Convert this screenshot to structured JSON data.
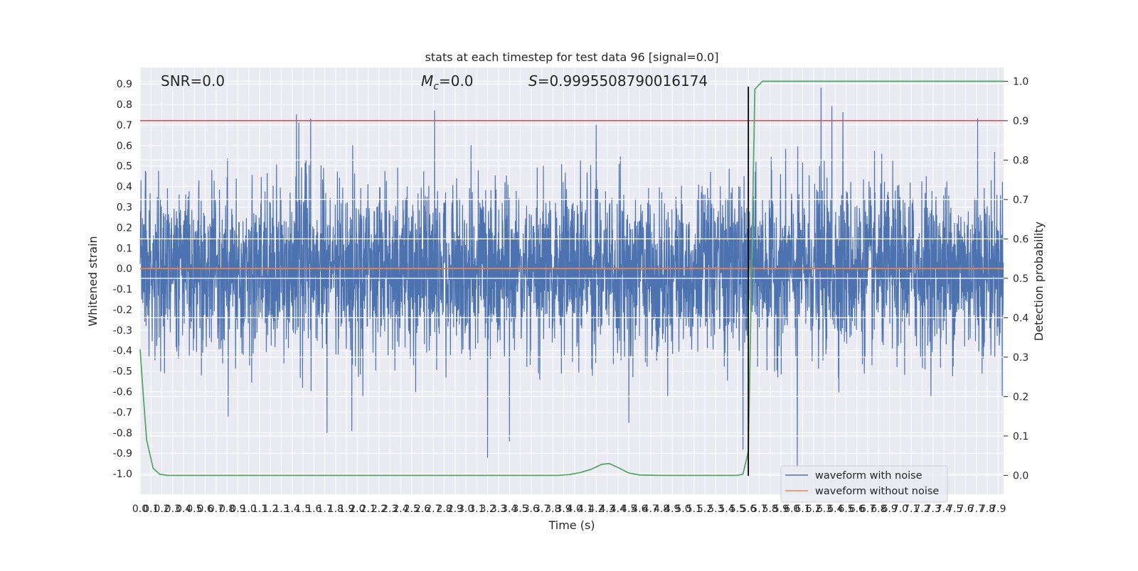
{
  "chart_data": {
    "type": "line",
    "title": "stats at each timestep for test data 96 [signal=0.0]",
    "xlabel": "Time (s)",
    "ylabel": "Whitened strain",
    "y2label": "Detection probability",
    "xlim": [
      0.0,
      7.95
    ],
    "ylim": [
      -1.1,
      0.98
    ],
    "y2lim": [
      -0.048,
      1.035
    ],
    "x_ticks": [
      "0.0",
      "0.1",
      "0.2",
      "0.3",
      "0.4",
      "0.5",
      "0.6",
      "0.7",
      "0.8",
      "0.9",
      "1.0",
      "1.1",
      "1.2",
      "1.3",
      "1.4",
      "1.5",
      "1.6",
      "1.7",
      "1.8",
      "1.9",
      "2.0",
      "2.1",
      "2.2",
      "2.3",
      "2.4",
      "2.5",
      "2.6",
      "2.7",
      "2.8",
      "2.9",
      "3.0",
      "3.1",
      "3.2",
      "3.3",
      "3.4",
      "3.5",
      "3.6",
      "3.7",
      "3.8",
      "3.9",
      "4.0",
      "4.1",
      "4.2",
      "4.3",
      "4.4",
      "4.5",
      "4.6",
      "4.7",
      "4.8",
      "4.9",
      "5.0",
      "5.1",
      "5.2",
      "5.3",
      "5.4",
      "5.5",
      "5.6",
      "5.7",
      "5.8",
      "5.9",
      "6.0",
      "6.1",
      "6.2",
      "6.3",
      "6.4",
      "6.5",
      "6.6",
      "6.7",
      "6.8",
      "6.9",
      "7.0",
      "7.1",
      "7.2",
      "7.3",
      "7.4",
      "7.5",
      "7.6",
      "7.7",
      "7.8",
      "7.9"
    ],
    "y_ticks": [
      "0.9",
      "0.8",
      "0.7",
      "0.6",
      "0.5",
      "0.4",
      "0.3",
      "0.2",
      "0.1",
      "0.0",
      "-0.1",
      "-0.2",
      "-0.3",
      "-0.4",
      "-0.5",
      "-0.6",
      "-0.7",
      "-0.8",
      "-0.9",
      "-1.0"
    ],
    "y2_ticks": [
      "1.0",
      "0.9",
      "0.8",
      "0.7",
      "0.6",
      "0.5",
      "0.4",
      "0.3",
      "0.2",
      "0.1",
      "0.0"
    ],
    "annotations": {
      "snr": "SNR=0.0",
      "mc_symbol": "M",
      "mc_sub": "c",
      "mc_value": "=0.0",
      "s_symbol": "S",
      "s_value": "=0.9995508790016174"
    },
    "threshold_line": {
      "y2": 0.9,
      "color": "#c44e52"
    },
    "vertical_marker": {
      "x": 5.6,
      "color": "#000000"
    },
    "legend": {
      "placement": "lower-right",
      "entries": [
        "waveform with noise",
        "waveform without noise"
      ]
    },
    "series": [
      {
        "name": "waveform with noise",
        "axis": "left",
        "color": "#4c72b0",
        "description_range": {
          "min": -0.97,
          "max": 0.88
        },
        "samples_per_second": 512,
        "seed": 96,
        "peaks": [
          {
            "x": 2.71,
            "y": 0.77
          },
          {
            "x": 1.44,
            "y": 0.75
          },
          {
            "x": 1.57,
            "y": 0.73
          },
          {
            "x": 1.46,
            "y": 0.71
          },
          {
            "x": 4.2,
            "y": 0.7
          },
          {
            "x": 6.27,
            "y": 0.88
          },
          {
            "x": 6.37,
            "y": 0.79
          },
          {
            "x": 6.47,
            "y": 0.76
          },
          {
            "x": 7.71,
            "y": 0.73
          },
          {
            "x": 6.05,
            "y": -0.97
          },
          {
            "x": 3.2,
            "y": -0.92
          },
          {
            "x": 3.4,
            "y": -0.84
          },
          {
            "x": 5.55,
            "y": -0.88
          },
          {
            "x": 4.5,
            "y": -0.75
          },
          {
            "x": 0.81,
            "y": -0.72
          },
          {
            "x": 1.72,
            "y": -0.8
          },
          {
            "x": 1.95,
            "y": -0.79
          }
        ]
      },
      {
        "name": "waveform without noise",
        "axis": "left",
        "color": "#dd8452",
        "x": [
          0.0,
          7.95
        ],
        "y": [
          0.0,
          0.0
        ]
      },
      {
        "name": "detection probability",
        "axis": "right",
        "color": "#55a868",
        "x": [
          0.0,
          0.03,
          0.06,
          0.12,
          0.18,
          0.25,
          0.4,
          1.0,
          2.0,
          3.0,
          3.7,
          3.85,
          3.95,
          4.05,
          4.15,
          4.25,
          4.32,
          4.4,
          4.5,
          4.6,
          4.8,
          5.2,
          5.5,
          5.55,
          5.6,
          5.66,
          5.73,
          5.8,
          6.0,
          7.0,
          7.95
        ],
        "y": [
          0.32,
          0.2,
          0.09,
          0.018,
          0.003,
          0.0,
          0.0,
          0.0,
          0.0,
          0.0,
          0.0,
          0.0,
          0.002,
          0.007,
          0.015,
          0.028,
          0.03,
          0.02,
          0.006,
          0.001,
          0.0,
          0.0,
          0.0,
          0.003,
          0.06,
          0.98,
          1.0,
          1.0,
          1.0,
          1.0,
          1.0
        ]
      }
    ],
    "colors": {
      "background": "#eaeaf2",
      "grid": "#ffffff",
      "text": "#262626"
    },
    "grid": true
  }
}
